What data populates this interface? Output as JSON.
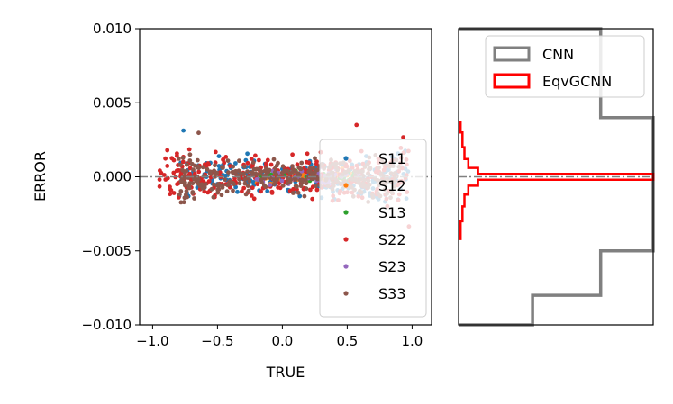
{
  "chart_data": [
    {
      "type": "scatter",
      "xlabel": "TRUE",
      "ylabel": "ERROR",
      "xlim": [
        -1.1,
        1.15
      ],
      "ylim": [
        -0.01,
        0.01
      ],
      "xticks": [
        -1.0,
        -0.5,
        0.0,
        0.5,
        1.0
      ],
      "xtick_labels": [
        "−1.0",
        "−0.5",
        "0.0",
        "0.5",
        "1.0"
      ],
      "yticks": [
        0.01,
        0.005,
        0.0,
        -0.005,
        -0.01
      ],
      "ytick_labels": [
        "0.010",
        "0.005",
        "0.000",
        "−0.005",
        "−0.010"
      ],
      "reference_line_y": 0.0,
      "legend_position": "right",
      "series": [
        {
          "name": "S11",
          "color": "#1f77b4",
          "x_range": [
            -0.8,
            1.0
          ],
          "y_spread": 0.0012,
          "count": 220
        },
        {
          "name": "S12",
          "color": "#ff7f0e",
          "x_range": [
            -0.2,
            0.6
          ],
          "y_spread": 0.0004,
          "count": 60
        },
        {
          "name": "S13",
          "color": "#2ca02c",
          "x_range": [
            -0.2,
            0.6
          ],
          "y_spread": 0.0004,
          "count": 40
        },
        {
          "name": "S22",
          "color": "#d62728",
          "x_range": [
            -0.95,
            1.0
          ],
          "y_spread": 0.0013,
          "count": 320
        },
        {
          "name": "S23",
          "color": "#9467bd",
          "x_range": [
            -0.2,
            0.6
          ],
          "y_spread": 0.0004,
          "count": 40
        },
        {
          "name": "S33",
          "color": "#8c564b",
          "x_range": [
            -0.8,
            0.9
          ],
          "y_spread": 0.0011,
          "count": 320
        }
      ]
    },
    {
      "type": "histogram",
      "orientation": "horizontal",
      "ylim": [
        -0.01,
        0.01
      ],
      "legend_position": "top",
      "series": [
        {
          "name": "CNN",
          "color": "#808080",
          "bin_edges": [
            -0.01,
            -0.008,
            -0.005,
            0.004,
            0.01
          ],
          "counts": [
            0.38,
            0.73,
            1.0,
            0.73
          ]
        },
        {
          "name": "EqvGCNN",
          "color": "#ff0000",
          "bin_edges": [
            -0.0042,
            -0.003,
            -0.002,
            -0.0012,
            -0.0006,
            -0.0002,
            0.0002,
            0.0006,
            0.0012,
            0.002,
            0.003,
            0.0037
          ],
          "counts": [
            0.01,
            0.02,
            0.03,
            0.05,
            0.1,
            1.0,
            0.1,
            0.05,
            0.03,
            0.02,
            0.01
          ]
        }
      ]
    }
  ]
}
